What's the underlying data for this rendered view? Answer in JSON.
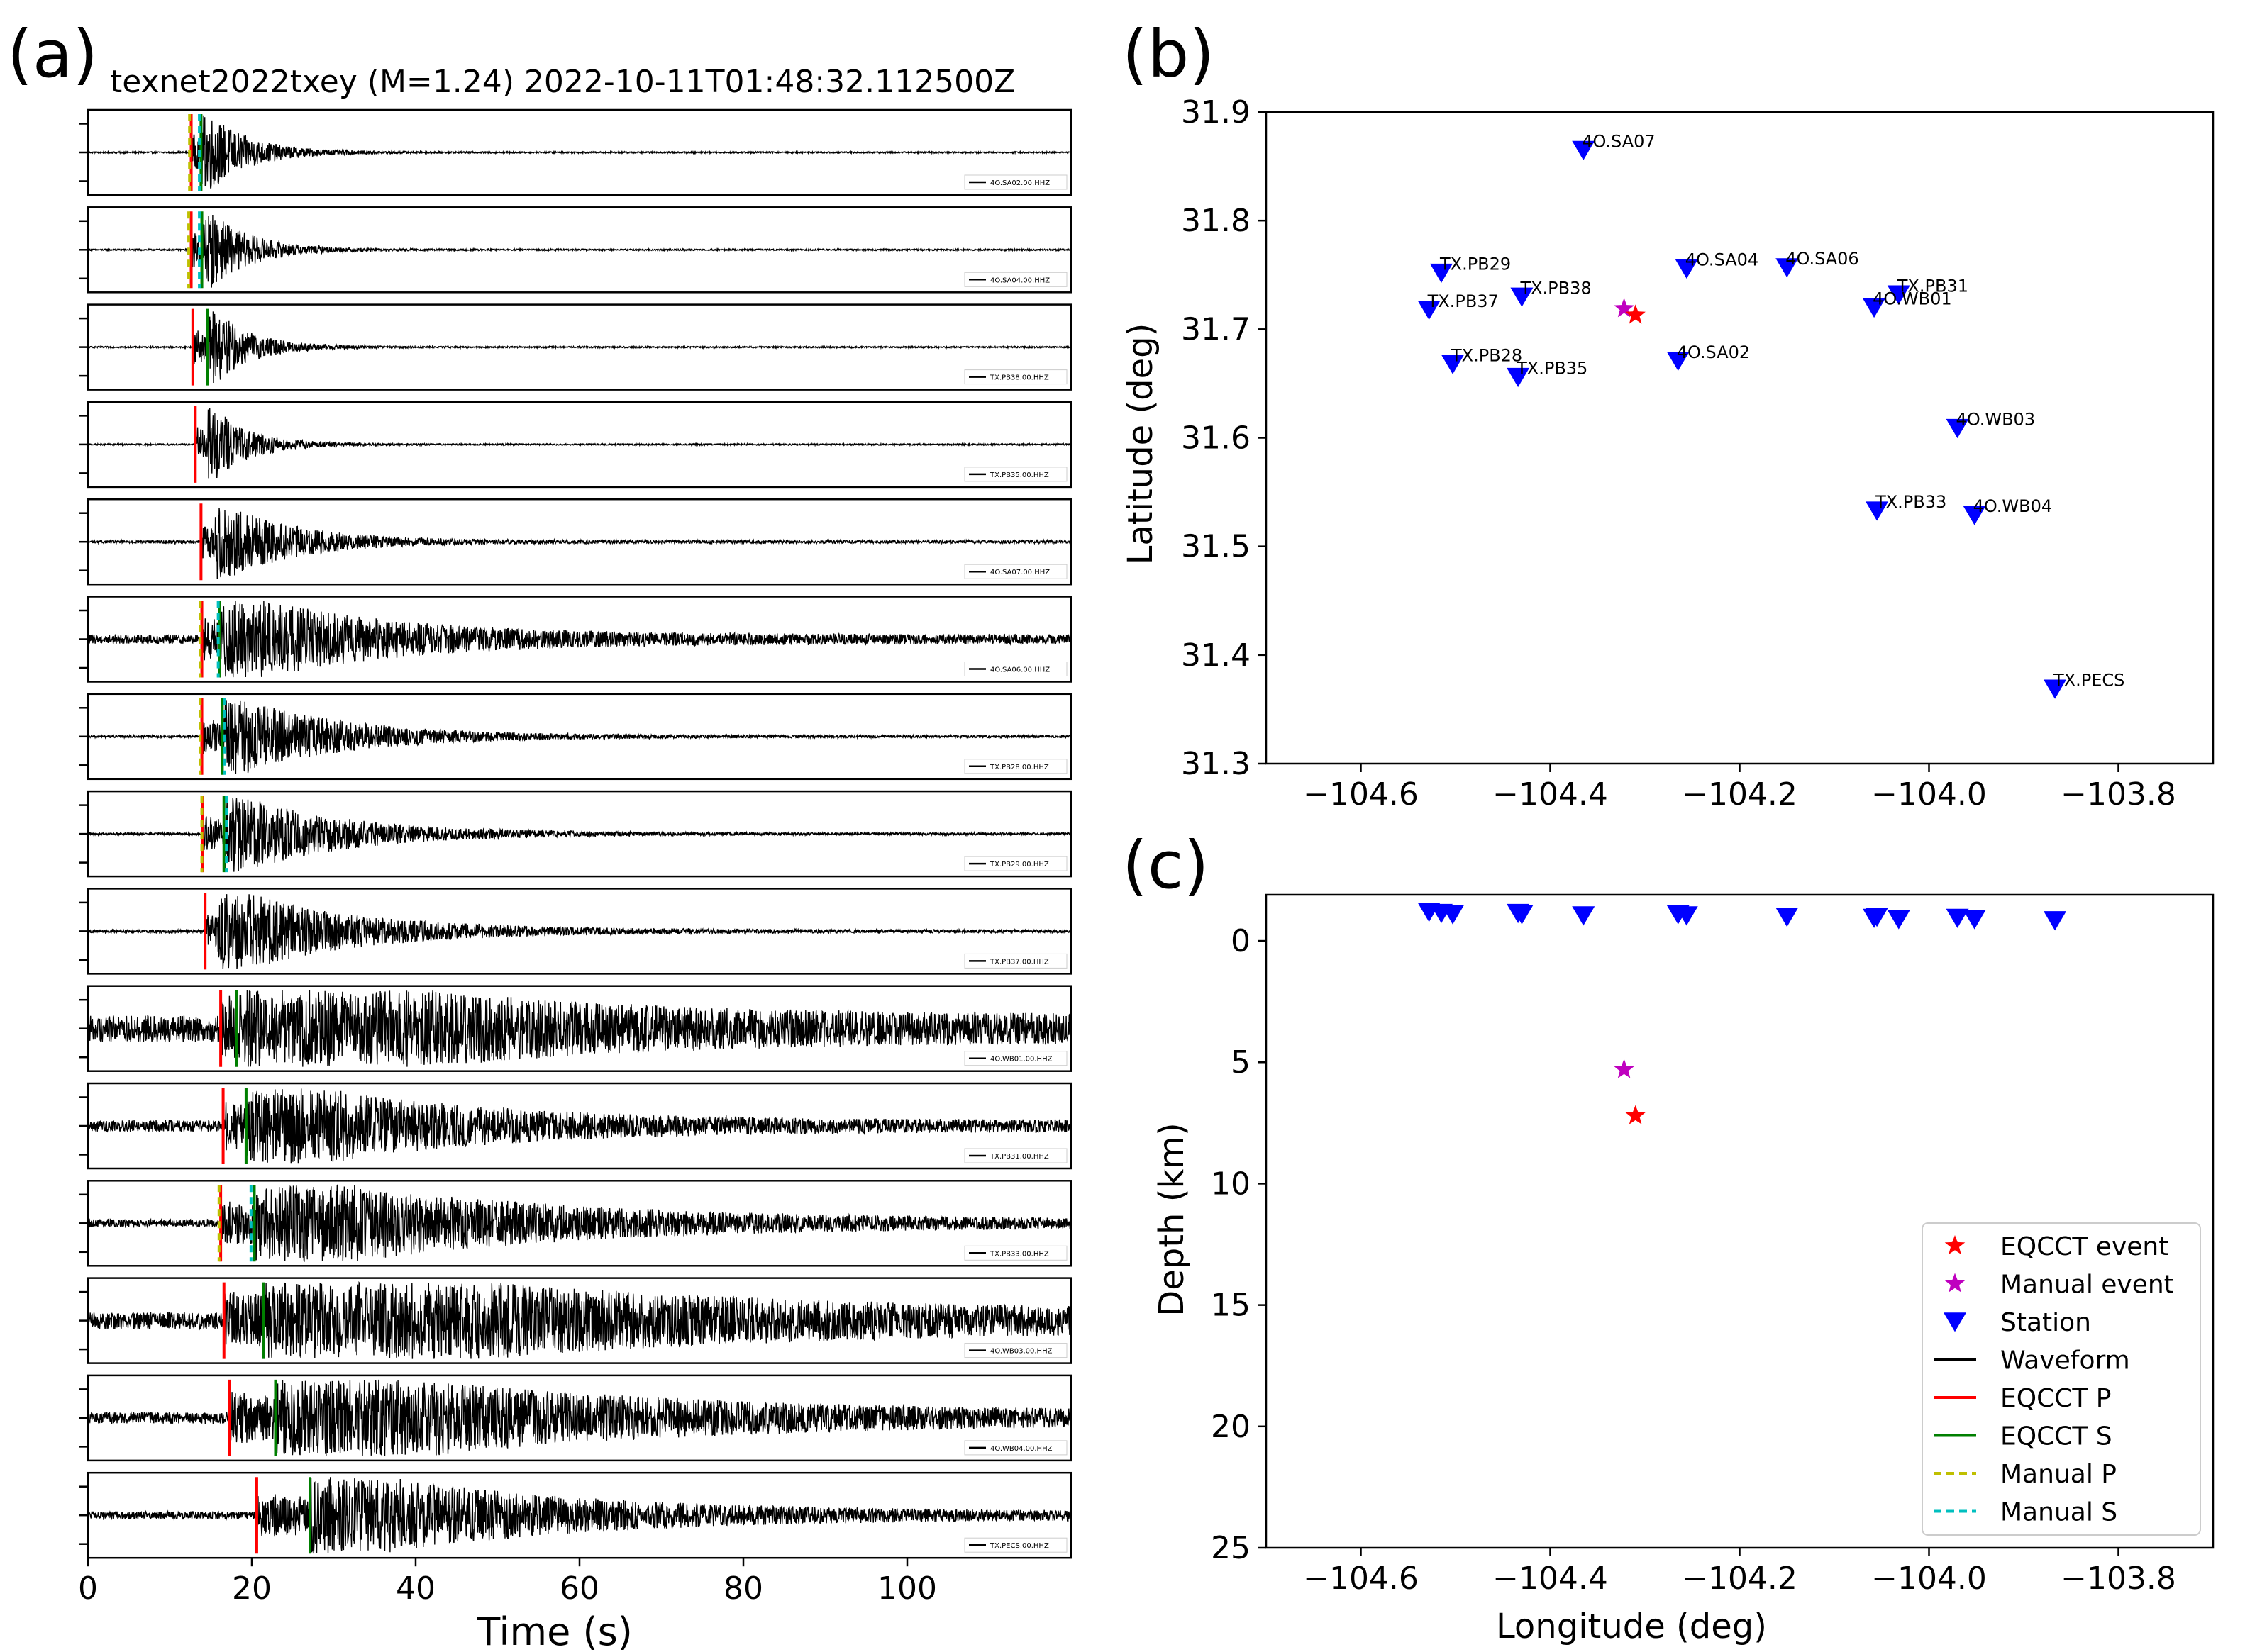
{
  "panel_labels": [
    "(a)",
    "(b)",
    "(c)"
  ],
  "chart_data": [
    {
      "type": "line",
      "panel": "(a)",
      "title": "texnet2022txey (M=1.24) 2022-10-11T01:48:32.112500Z",
      "xlabel": "Time (s)",
      "ylabel": "",
      "xlim": [
        0,
        120
      ],
      "xticks": [
        0,
        20,
        40,
        60,
        80,
        100
      ],
      "grid": false,
      "traces": [
        {
          "name": "4O.SA02.00.HHZ",
          "eqcct_p": 12.6,
          "eqcct_s": 13.8,
          "manual_p": 12.4,
          "manual_s": 13.6,
          "amp": 0.9,
          "noise": 0.02,
          "decay": 0.18
        },
        {
          "name": "4O.SA04.00.HHZ",
          "eqcct_p": 12.6,
          "eqcct_s": 13.9,
          "manual_p": 12.3,
          "manual_s": 13.6,
          "amp": 0.9,
          "noise": 0.02,
          "decay": 0.18
        },
        {
          "name": "TX.PB38.00.HHZ",
          "eqcct_p": 12.8,
          "eqcct_s": 14.6,
          "manual_p": null,
          "manual_s": null,
          "amp": 0.9,
          "noise": 0.02,
          "decay": 0.2
        },
        {
          "name": "TX.PB35.00.HHZ",
          "eqcct_p": 13.1,
          "eqcct_s": null,
          "manual_p": null,
          "manual_s": null,
          "amp": 0.85,
          "noise": 0.02,
          "decay": 0.2
        },
        {
          "name": "4O.SA07.00.HHZ",
          "eqcct_p": 13.8,
          "eqcct_s": null,
          "manual_p": null,
          "manual_s": null,
          "amp": 0.8,
          "noise": 0.04,
          "decay": 0.1
        },
        {
          "name": "4O.SA06.00.HHZ",
          "eqcct_p": 13.9,
          "eqcct_s": 16.1,
          "manual_p": 13.7,
          "manual_s": 15.9,
          "amp": 0.85,
          "noise": 0.12,
          "decay": 0.05
        },
        {
          "name": "TX.PB28.00.HHZ",
          "eqcct_p": 13.9,
          "eqcct_s": 16.4,
          "manual_p": 13.7,
          "manual_s": 16.7,
          "amp": 0.85,
          "noise": 0.03,
          "decay": 0.07
        },
        {
          "name": "TX.PB29.00.HHZ",
          "eqcct_p": 14.0,
          "eqcct_s": 16.6,
          "manual_p": 13.9,
          "manual_s": 16.9,
          "amp": 0.85,
          "noise": 0.03,
          "decay": 0.07
        },
        {
          "name": "TX.PB37.00.HHZ",
          "eqcct_p": 14.3,
          "eqcct_s": null,
          "manual_p": null,
          "manual_s": null,
          "amp": 0.85,
          "noise": 0.04,
          "decay": 0.06
        },
        {
          "name": "4O.WB01.00.HHZ",
          "eqcct_p": 16.2,
          "eqcct_s": 18.1,
          "manual_p": null,
          "manual_s": null,
          "amp": 1.0,
          "noise": 0.35,
          "decay": 0.03
        },
        {
          "name": "TX.PB31.00.HHZ",
          "eqcct_p": 16.5,
          "eqcct_s": 19.3,
          "manual_p": null,
          "manual_s": null,
          "amp": 0.9,
          "noise": 0.15,
          "decay": 0.04
        },
        {
          "name": "TX.PB33.00.HHZ",
          "eqcct_p": 16.2,
          "eqcct_s": 20.3,
          "manual_p": 16.0,
          "manual_s": 19.9,
          "amp": 0.95,
          "noise": 0.1,
          "decay": 0.03
        },
        {
          "name": "4O.WB03.00.HHZ",
          "eqcct_p": 16.6,
          "eqcct_s": 21.4,
          "manual_p": null,
          "manual_s": null,
          "amp": 1.0,
          "noise": 0.22,
          "decay": 0.02
        },
        {
          "name": "4O.WB04.00.HHZ",
          "eqcct_p": 17.3,
          "eqcct_s": 22.9,
          "manual_p": null,
          "manual_s": null,
          "amp": 1.0,
          "noise": 0.15,
          "decay": 0.025
        },
        {
          "name": "TX.PECS.00.HHZ",
          "eqcct_p": 20.6,
          "eqcct_s": 27.1,
          "manual_p": null,
          "manual_s": null,
          "amp": 0.95,
          "noise": 0.1,
          "decay": 0.035
        }
      ]
    },
    {
      "type": "scatter",
      "panel": "(b)",
      "title": "",
      "xlabel": "",
      "ylabel": "Latitude (deg)",
      "xlim": [
        -104.7,
        -103.7
      ],
      "ylim": [
        31.3,
        31.9
      ],
      "xticks": [
        -104.6,
        -104.4,
        -104.2,
        -104.0,
        -103.8
      ],
      "xtick_labels": [
        "−104.6",
        "−104.4",
        "−104.2",
        "−104.0",
        "−103.8"
      ],
      "yticks": [
        31.3,
        31.4,
        31.5,
        31.6,
        31.7,
        31.8,
        31.9
      ],
      "ytick_labels": [
        "31.3",
        "31.4",
        "31.5",
        "31.6",
        "31.7",
        "31.8",
        "31.9"
      ],
      "grid": false,
      "stations": [
        {
          "name": "4O.SA07",
          "lon": -104.365,
          "lat": 31.865
        },
        {
          "name": "TX.PB29",
          "lon": -104.515,
          "lat": 31.752
        },
        {
          "name": "TX.PB37",
          "lon": -104.528,
          "lat": 31.718
        },
        {
          "name": "TX.PB38",
          "lon": -104.43,
          "lat": 31.73
        },
        {
          "name": "4O.SA04",
          "lon": -104.256,
          "lat": 31.756
        },
        {
          "name": "4O.SA06",
          "lon": -104.15,
          "lat": 31.757
        },
        {
          "name": "TX.PB31",
          "lon": -104.032,
          "lat": 31.732
        },
        {
          "name": "4O.WB01",
          "lon": -104.058,
          "lat": 31.72
        },
        {
          "name": "TX.PB28",
          "lon": -104.503,
          "lat": 31.668
        },
        {
          "name": "TX.PB35",
          "lon": -104.434,
          "lat": 31.656
        },
        {
          "name": "4O.SA02",
          "lon": -104.265,
          "lat": 31.671
        },
        {
          "name": "4O.WB03",
          "lon": -103.97,
          "lat": 31.609
        },
        {
          "name": "TX.PB33",
          "lon": -104.055,
          "lat": 31.533
        },
        {
          "name": "4O.WB04",
          "lon": -103.952,
          "lat": 31.529
        },
        {
          "name": "TX.PECS",
          "lon": -103.867,
          "lat": 31.369
        }
      ],
      "eqcct_event": {
        "lon": -104.31,
        "lat": 31.713
      },
      "manual_event": {
        "lon": -104.322,
        "lat": 31.719
      }
    },
    {
      "type": "scatter",
      "panel": "(c)",
      "title": "",
      "xlabel": "Longitude (deg)",
      "ylabel": "Depth (km)",
      "xlim": [
        -104.7,
        -103.7
      ],
      "ylim": [
        25,
        -1.9
      ],
      "xticks": [
        -104.6,
        -104.4,
        -104.2,
        -104.0,
        -103.8
      ],
      "xtick_labels": [
        "−104.6",
        "−104.4",
        "−104.2",
        "−104.0",
        "−103.8"
      ],
      "yticks": [
        0,
        5,
        10,
        15,
        20,
        25
      ],
      "ytick_labels": [
        "0",
        "5",
        "10",
        "15",
        "20",
        "25"
      ],
      "grid": false,
      "station_depths": [
        {
          "lon": -104.528,
          "depth": -1.2
        },
        {
          "lon": -104.515,
          "depth": -1.15
        },
        {
          "lon": -104.503,
          "depth": -1.1
        },
        {
          "lon": -104.434,
          "depth": -1.15
        },
        {
          "lon": -104.43,
          "depth": -1.1
        },
        {
          "lon": -104.365,
          "depth": -1.05
        },
        {
          "lon": -104.265,
          "depth": -1.1
        },
        {
          "lon": -104.256,
          "depth": -1.05
        },
        {
          "lon": -104.15,
          "depth": -1.0
        },
        {
          "lon": -104.058,
          "depth": -0.95
        },
        {
          "lon": -104.055,
          "depth": -1.0
        },
        {
          "lon": -104.032,
          "depth": -0.9
        },
        {
          "lon": -103.97,
          "depth": -0.95
        },
        {
          "lon": -103.952,
          "depth": -0.9
        },
        {
          "lon": -103.867,
          "depth": -0.85
        }
      ],
      "eqcct_event": {
        "lon": -104.31,
        "depth": 7.2
      },
      "manual_event": {
        "lon": -104.322,
        "depth": 5.3
      },
      "legend_position": "lower-right",
      "legend": [
        {
          "label": "EQCCT event",
          "kind": "star",
          "color": "#ff0000"
        },
        {
          "label": "Manual event",
          "kind": "star",
          "color": "#bf00bf"
        },
        {
          "label": "Station",
          "kind": "triangle",
          "color": "#0000ff"
        },
        {
          "label": "Waveform",
          "kind": "line",
          "color": "#000000"
        },
        {
          "label": "EQCCT P",
          "kind": "line",
          "color": "#ff0000"
        },
        {
          "label": "EQCCT S",
          "kind": "line",
          "color": "#007f00"
        },
        {
          "label": "Manual P",
          "kind": "dash",
          "color": "#bfbf00"
        },
        {
          "label": "Manual S",
          "kind": "dash",
          "color": "#00bfbf"
        }
      ]
    }
  ],
  "colors": {
    "eqcct_p": "#ff0000",
    "eqcct_s": "#007f00",
    "manual_p": "#bfbf00",
    "manual_s": "#00bfbf",
    "station": "#0000ff",
    "eqcct_event": "#ff0000",
    "manual_event": "#bf00bf",
    "waveform": "#000000"
  }
}
